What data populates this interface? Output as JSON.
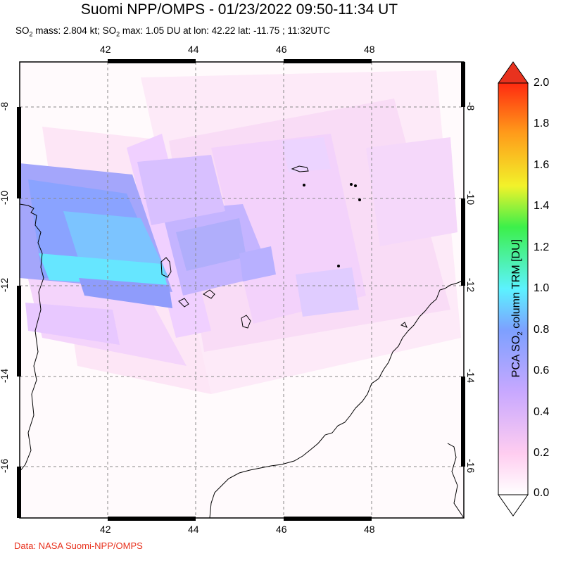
{
  "title": "Suomi NPP/OMPS - 01/23/2022 09:50-11:34 UT",
  "subtitle": {
    "p1": "SO",
    "sub": "2",
    "p2": " mass: 2.804 kt; SO",
    "p3": " max: 1.05 DU at lon: 42.22 lat: -11.75 ; 11:32UTC"
  },
  "map": {
    "lon_ticks": [
      "42",
      "44",
      "46",
      "48"
    ],
    "lat_ticks": [
      "-8",
      "-10",
      "-12",
      "-14",
      "-16"
    ],
    "lon_range": [
      40.0,
      50.0
    ],
    "lat_range": [
      -17.0,
      -7.0
    ],
    "grid": "dashed"
  },
  "colorbar": {
    "label_p1": "PCA SO",
    "label_sub": "2",
    "label_p2": " column TRM [DU]",
    "ticks": [
      "2.0",
      "1.8",
      "1.6",
      "1.4",
      "1.2",
      "1.0",
      "0.8",
      "0.6",
      "0.4",
      "0.2",
      "0.0"
    ],
    "range": [
      0.0,
      2.0
    ],
    "colors": [
      "#ffffff",
      "#ffcdf0",
      "#c8a8ff",
      "#7da0ff",
      "#5cf2ff",
      "#3cf04a",
      "#f2f22a",
      "#ff9a1a",
      "#ff2a10"
    ]
  },
  "credit": "Data: NASA Suomi-NPP/OMPS"
}
